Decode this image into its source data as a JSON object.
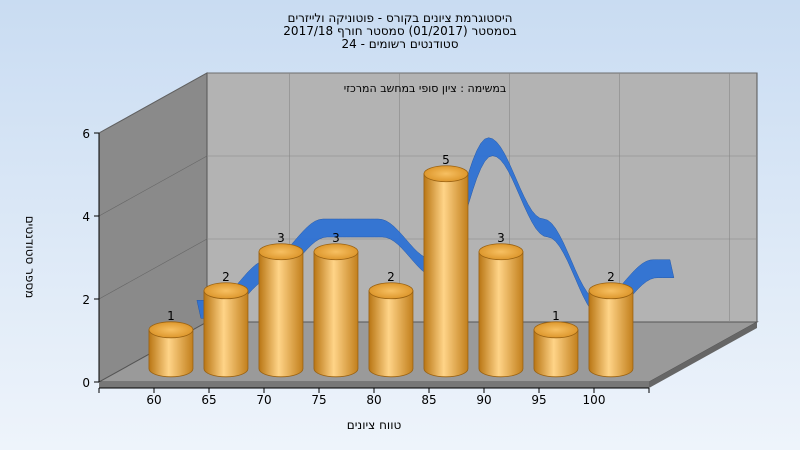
{
  "chart_data": {
    "type": "bar",
    "title_lines": [
      "היסטוגרמת ציונים בקורס - פוטוניקה ולייזרים",
      "בסמסטר  (01/2017)  סמסטר חורף 2017/18",
      "סטודנטים רשומים - 24"
    ],
    "subtitle": "במשימה : ציון סופי במחשב המרכזי",
    "xlabel": "טווח ציונים",
    "ylabel": "מספר סטודנטים",
    "categories": [
      "60",
      "65",
      "70",
      "75",
      "80",
      "85",
      "90",
      "95",
      "100"
    ],
    "values": [
      1,
      2,
      3,
      3,
      2,
      5,
      3,
      1,
      2
    ],
    "ylim": [
      0,
      6
    ],
    "yticks": [
      "0",
      "2",
      "4",
      "6"
    ],
    "grid": true,
    "legend": "none",
    "trend_curve": true,
    "colors": {
      "background_top": "#c9dcf2",
      "background_bottom": "#eef4fb",
      "back_wall": "#b3b3b3",
      "side_wall": "#8a8a8a",
      "floor": "#9a9a9a",
      "bar_light": "#ffd488",
      "bar_mid": "#f1ad45",
      "bar_dark": "#b97614",
      "curve": "#2f72d4"
    }
  }
}
